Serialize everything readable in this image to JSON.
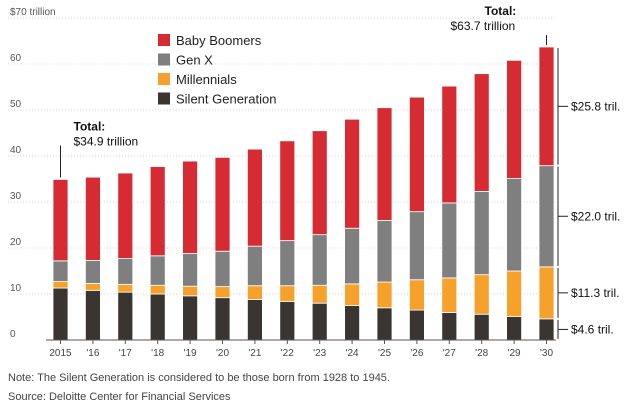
{
  "chart_data": {
    "type": "bar",
    "stacked": true,
    "categories": [
      "2015",
      "'16",
      "'17",
      "'18",
      "'19",
      "'20",
      "'21",
      "'22",
      "'23",
      "'24",
      "'25",
      "'26",
      "'27",
      "'28",
      "'29",
      "'30"
    ],
    "y_ticks": [
      {
        "value": 70,
        "label": "$70 trillion"
      },
      {
        "value": 60,
        "label": "60"
      },
      {
        "value": 50,
        "label": "50"
      },
      {
        "value": 40,
        "label": "40"
      },
      {
        "value": 30,
        "label": "30"
      },
      {
        "value": 20,
        "label": "20"
      },
      {
        "value": 10,
        "label": "10"
      },
      {
        "value": 0,
        "label": "0"
      }
    ],
    "ylim": [
      0,
      70
    ],
    "grid": true,
    "legend_position": "top-left",
    "series": [
      {
        "name": "Silent Generation",
        "color": "#3a3530",
        "values": [
          11.3,
          10.8,
          10.4,
          10.0,
          9.6,
          9.2,
          8.8,
          8.4,
          8.0,
          7.5,
          7.0,
          6.5,
          6.0,
          5.6,
          5.1,
          4.6
        ]
      },
      {
        "name": "Millennials",
        "color": "#f5a12c",
        "values": [
          1.4,
          1.5,
          1.7,
          1.9,
          2.1,
          2.4,
          3.0,
          3.4,
          3.9,
          4.7,
          5.6,
          6.6,
          7.5,
          8.6,
          9.9,
          11.3
        ]
      },
      {
        "name": "Gen X",
        "color": "#7f7f7f",
        "values": [
          4.5,
          5.0,
          5.6,
          6.4,
          7.1,
          7.7,
          8.6,
          9.8,
          11.0,
          12.1,
          13.4,
          14.8,
          16.3,
          18.1,
          20.1,
          22.0
        ]
      },
      {
        "name": "Baby Boomers",
        "color": "#d72b33",
        "values": [
          17.7,
          18.1,
          18.6,
          19.4,
          20.1,
          20.4,
          21.1,
          21.7,
          22.6,
          23.7,
          24.5,
          24.9,
          25.4,
          25.6,
          25.7,
          25.8
        ]
      }
    ],
    "legend_order": [
      "Baby Boomers",
      "Gen X",
      "Millennials",
      "Silent Generation"
    ],
    "totals": [
      {
        "category": "2015",
        "title": "Total:",
        "value": "$34.9 trillion"
      },
      {
        "category": "'30",
        "title": "Total:",
        "value": "$63.7 trillion"
      }
    ],
    "segment_labels": [
      {
        "series": "Baby Boomers",
        "text": "$25.8 tril."
      },
      {
        "series": "Gen X",
        "text": "$22.0 tril."
      },
      {
        "series": "Millennials",
        "text": "$11.3 tril."
      },
      {
        "series": "Silent Generation",
        "text": "$4.6 tril."
      }
    ]
  },
  "footer": {
    "note": "Note: The Silent Generation is considered to be those born from 1928 to 1945.",
    "source": "Source: Deloitte Center for Financial Services"
  }
}
